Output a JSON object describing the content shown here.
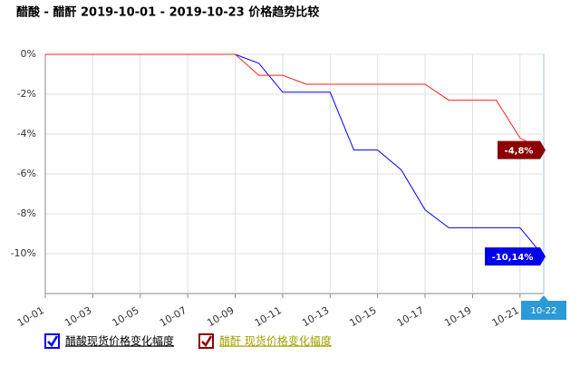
{
  "chart_data": {
    "type": "line",
    "title": "醋酸 - 醋酐 2019-10-01 - 2019-10-23 价格趋势比较",
    "categories": [
      "10-01",
      null,
      "10-03",
      null,
      "10-05",
      null,
      "10-07",
      null,
      "10-09",
      null,
      "10-11",
      null,
      "10-13",
      null,
      "10-15",
      null,
      "10-17",
      null,
      "10-19",
      null,
      "10-21",
      "10-22"
    ],
    "series": [
      {
        "name": "醋酸现货价格变化幅度",
        "color": "#0000ff",
        "values": [
          0,
          0,
          0,
          0,
          0,
          0,
          0,
          0,
          0,
          -0.45,
          -1.9,
          -1.9,
          -1.9,
          -4.8,
          -4.8,
          -5.8,
          -7.8,
          -8.7,
          -8.7,
          -8.7,
          -8.7,
          -10.14
        ],
        "value_labels": [
          null,
          null,
          null,
          null,
          null,
          null,
          null,
          null,
          null,
          null,
          null,
          null,
          null,
          null,
          null,
          null,
          null,
          null,
          null,
          null,
          null,
          "-10,14%"
        ]
      },
      {
        "name": "醋酐 现货价格变化幅度",
        "color": "#ff2020",
        "values": [
          0,
          0,
          0,
          0,
          0,
          0,
          0,
          0,
          0,
          -1.05,
          -1.05,
          -1.5,
          -1.5,
          -1.5,
          -1.5,
          -1.5,
          -1.5,
          -2.3,
          -2.3,
          -2.3,
          -4.2,
          -4.8
        ],
        "value_labels": [
          null,
          null,
          null,
          null,
          null,
          null,
          null,
          null,
          null,
          null,
          null,
          null,
          null,
          null,
          null,
          null,
          null,
          null,
          null,
          null,
          null,
          "-4,8%"
        ]
      }
    ],
    "ylim": [
      -12,
      0
    ],
    "yticks": [
      {
        "value": 0,
        "label": "0%"
      },
      {
        "value": -2,
        "label": "-2%"
      },
      {
        "value": -4,
        "label": "-4%"
      },
      {
        "value": -6,
        "label": "-6%"
      },
      {
        "value": -8,
        "label": "-8%"
      },
      {
        "value": -10,
        "label": "-10%"
      }
    ],
    "grid": true
  }
}
